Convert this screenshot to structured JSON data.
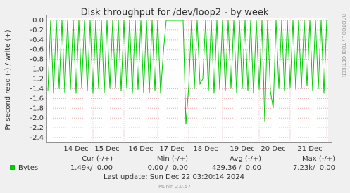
{
  "chart_data": {
    "type": "line",
    "title": "Disk throughput for /dev/loop2 - by week",
    "y_label": "Pr second read (-) / write (+)",
    "side_label": "RRDTOOL / TOBI OETIKER",
    "categories": [
      null,
      null,
      null,
      null,
      null,
      null,
      null,
      null,
      null,
      null,
      "14 Dec",
      null,
      null,
      null,
      null,
      null,
      null,
      null,
      null,
      null,
      null,
      "15 Dec",
      null,
      null,
      null,
      null,
      null,
      null,
      null,
      null,
      null,
      null,
      null,
      "16 Dec",
      null,
      null,
      null,
      null,
      null,
      null,
      null,
      null,
      null,
      null,
      "17 Dec",
      null,
      null,
      null,
      null,
      null,
      null,
      null,
      null,
      null,
      null,
      null,
      "18 Dec",
      null,
      null,
      null,
      null,
      null,
      null,
      null,
      null,
      null,
      null,
      null,
      null,
      "19 Dec",
      null,
      null,
      null,
      null,
      null,
      null,
      null,
      null,
      null,
      null,
      "20 Dec",
      null,
      null,
      null,
      null,
      null,
      null,
      null,
      null,
      null,
      null,
      null,
      null,
      "21 Dec",
      null,
      null,
      null,
      null,
      null,
      null
    ],
    "series": [
      {
        "name": "Bytes",
        "color": "#00cc00",
        "values": [
          -1.45,
          0,
          -1.5,
          0,
          -1.4,
          0,
          -1.48,
          0,
          -1.42,
          0,
          -1.5,
          0,
          -1.38,
          0,
          -1.45,
          0,
          -1.5,
          0,
          -1.4,
          0,
          -1.48,
          0,
          -1.4,
          0,
          -1.38,
          0,
          -1.45,
          0,
          -1.4,
          0,
          -1.5,
          0,
          -1.42,
          0,
          -1.48,
          0,
          -1.5,
          0,
          -1.45,
          0,
          -1.5,
          -0.65,
          0,
          0,
          0,
          0,
          0,
          0,
          0,
          -2.13,
          -1.35,
          0,
          -1.4,
          0,
          -1.3,
          -1.2,
          0,
          -1.45,
          0,
          -1.5,
          0,
          -1.42,
          0,
          -1.45,
          0,
          -1.4,
          0,
          -1.48,
          0,
          -1.4,
          0,
          -1.45,
          0,
          -1.5,
          0,
          -1.42,
          0,
          -2.08,
          0,
          -1.45,
          -1.8,
          0,
          -1.4,
          0,
          -1.45,
          0,
          -1.38,
          0,
          -1.42,
          0,
          -1.4,
          0,
          -1.35,
          0,
          -1.45,
          0,
          -1.4,
          0,
          -1.5,
          0
        ]
      }
    ],
    "ylim": [
      -2.5,
      0.05
    ],
    "yticks": [
      {
        "value": 0,
        "label": "0.0"
      },
      -0.2,
      -0.4,
      -0.6,
      -0.8,
      {
        "value": -1,
        "label": "-1.0"
      },
      -1.2,
      -1.4,
      -1.6,
      -1.8,
      {
        "value": -2,
        "label": "-2.0"
      },
      -2.2,
      -2.4
    ],
    "grid": true,
    "legend_table": {
      "headers": [
        "Cur (-/+)",
        "Min (-/+)",
        "Avg (-/+)",
        "Max (-/+)"
      ],
      "cells": [
        "1.49k/  0.00",
        "0.00 /  0.00",
        "429.36 /  0.00",
        "7.23k/  0.00"
      ]
    },
    "last_update": "Last update: Sun Dec 22 03:20:14 2024",
    "footer": "Munin 2.0.57"
  }
}
